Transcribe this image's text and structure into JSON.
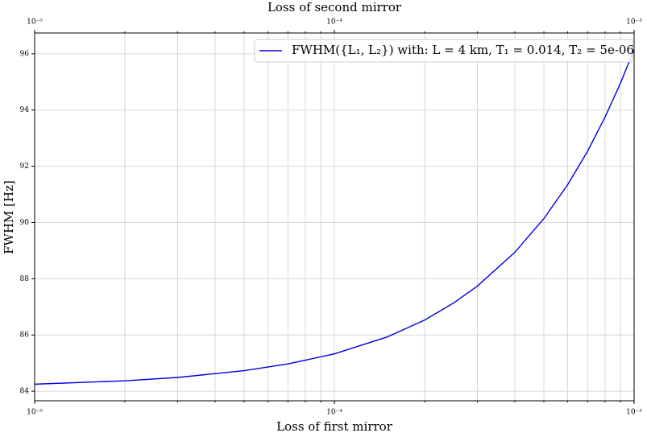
{
  "chart_data": {
    "type": "line",
    "xlabel": "Loss of first mirror",
    "x2label": "Loss of second mirror",
    "ylabel": "FWHM [Hz]",
    "xscale": "log",
    "grid": true,
    "legend": "upper right",
    "xlim": [
      1e-05,
      0.001
    ],
    "ylim": [
      83.66,
      96.74
    ],
    "xticks": [
      {
        "value": 1e-05,
        "label": "10⁻⁵"
      },
      {
        "value": 0.0001,
        "label": "10⁻⁴"
      },
      {
        "value": 0.001,
        "label": "10⁻³"
      }
    ],
    "x2lim": [
      1e-05,
      0.001
    ],
    "x2ticks": [
      {
        "value": 1e-05,
        "label": "10⁻⁵"
      },
      {
        "value": 0.0001,
        "label": "10⁻⁴"
      },
      {
        "value": 0.001,
        "label": "10⁻³"
      }
    ],
    "xminorticks": [
      2e-05,
      3e-05,
      4e-05,
      5e-05,
      6e-05,
      7e-05,
      8e-05,
      9e-05,
      0.0002,
      0.0003,
      0.0004,
      0.0005,
      0.0006,
      0.0007,
      0.0008,
      0.0009
    ],
    "yticks": [
      84,
      86,
      88,
      90,
      92,
      94,
      96
    ],
    "x": [
      1e-05,
      2e-05,
      3e-05,
      5e-05,
      7e-05,
      0.0001,
      0.00015,
      0.0002,
      0.00025,
      0.0003,
      0.0004,
      0.0005,
      0.0006,
      0.0007,
      0.0008,
      0.0009,
      0.001
    ],
    "series": [
      {
        "name": "FWHM({L₁, L₂}) with: L = 4 km, T₁ = 0.014, T₂ = 5e-06",
        "color": "#0000e0",
        "values": [
          84.25,
          84.37,
          84.49,
          84.73,
          84.97,
          85.33,
          85.93,
          86.53,
          87.14,
          87.74,
          88.94,
          90.14,
          91.34,
          92.54,
          93.75,
          94.95,
          96.15
        ]
      }
    ]
  }
}
